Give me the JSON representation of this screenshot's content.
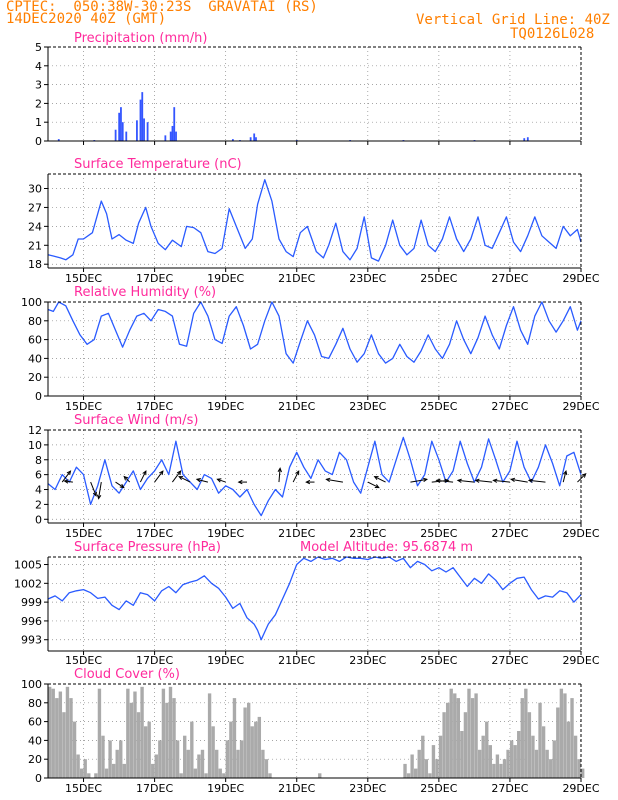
{
  "header": {
    "line1_left": "CPTEC:  050:38W-30:23S  GRAVATAI (RS)",
    "line2_left": "14DEC2020 40Z (GMT)",
    "line2_right": "Vertical Grid Line: 40Z",
    "line3_right": "TQ0126L028"
  },
  "colors": {
    "line": "#2a5bff",
    "bar": "#3355ff",
    "cloud": "#aaaaaa",
    "title": "#ff2a9c",
    "orange": "#ff7f00"
  },
  "x_axis": {
    "start_day": 14.0,
    "end_day": 29.0,
    "ticks": [
      15,
      17,
      19,
      21,
      23,
      25,
      27,
      29
    ],
    "tick_labels": [
      "15DEC",
      "17DEC",
      "19DEC",
      "21DEC",
      "23DEC",
      "25DEC",
      "27DEC",
      "29DEC"
    ]
  },
  "chart_data": [
    {
      "id": "precip",
      "type": "bar",
      "title": "Precipitation (mm/h)",
      "ylim": [
        0,
        5
      ],
      "yticks": [
        0,
        1,
        2,
        3,
        4,
        5
      ],
      "x": [
        14.3,
        15.3,
        15.9,
        16.0,
        16.05,
        16.1,
        16.2,
        16.5,
        16.6,
        16.65,
        16.7,
        16.8,
        17.3,
        17.45,
        17.5,
        17.55,
        17.6,
        19.2,
        19.4,
        19.7,
        19.8,
        19.85,
        21.0,
        22.5,
        24.0,
        26.0,
        27.4,
        27.5
      ],
      "values": [
        0.1,
        0.05,
        0.6,
        1.5,
        1.8,
        1.0,
        0.5,
        1.1,
        2.2,
        2.6,
        1.2,
        1.0,
        0.3,
        0.5,
        0.8,
        1.8,
        0.5,
        0.1,
        0.05,
        0.2,
        0.4,
        0.2,
        0.05,
        0.05,
        0.05,
        0.05,
        0.15,
        0.2
      ]
    },
    {
      "id": "temp",
      "type": "line",
      "title": "Surface Temperature (nC)",
      "ylim": [
        17.4,
        32.3
      ],
      "yticks": [
        18,
        21,
        24,
        27,
        30
      ],
      "x": [
        14.0,
        14.15,
        14.35,
        14.5,
        14.7,
        14.85,
        15.0,
        15.25,
        15.5,
        15.65,
        15.8,
        16.0,
        16.2,
        16.4,
        16.55,
        16.75,
        16.9,
        17.1,
        17.3,
        17.5,
        17.75,
        17.9,
        18.1,
        18.3,
        18.5,
        18.7,
        18.9,
        19.1,
        19.3,
        19.55,
        19.75,
        19.9,
        20.1,
        20.3,
        20.5,
        20.7,
        20.9,
        21.1,
        21.3,
        21.55,
        21.75,
        21.9,
        22.1,
        22.3,
        22.5,
        22.7,
        22.9,
        23.1,
        23.3,
        23.5,
        23.7,
        23.9,
        24.1,
        24.3,
        24.5,
        24.7,
        24.9,
        25.1,
        25.3,
        25.5,
        25.7,
        25.9,
        26.1,
        26.3,
        26.5,
        26.7,
        26.9,
        27.1,
        27.3,
        27.5,
        27.7,
        27.9,
        28.1,
        28.3,
        28.5,
        28.7,
        28.9,
        29.0
      ],
      "values": [
        19.5,
        19.3,
        19.0,
        18.7,
        19.5,
        22.0,
        22.0,
        23.0,
        28.0,
        26.0,
        22.0,
        22.7,
        21.8,
        21.3,
        24.5,
        27.0,
        24.0,
        21.3,
        20.3,
        21.8,
        20.8,
        24.0,
        23.8,
        23.0,
        20.0,
        19.7,
        20.5,
        26.8,
        24.0,
        20.5,
        22.0,
        27.5,
        31.4,
        28.0,
        22.0,
        20.0,
        19.2,
        23.0,
        24.0,
        20.0,
        19.0,
        21.0,
        24.5,
        20.0,
        18.7,
        20.5,
        25.5,
        19.0,
        18.5,
        21.0,
        25.0,
        21.0,
        19.5,
        20.5,
        25.0,
        21.0,
        20.0,
        22.0,
        25.5,
        22.0,
        20.0,
        22.0,
        25.5,
        21.0,
        20.5,
        23.0,
        25.5,
        21.5,
        20.0,
        22.5,
        25.5,
        22.5,
        21.5,
        20.5,
        24.0,
        22.5,
        23.5,
        21.5
      ]
    },
    {
      "id": "rh",
      "type": "line",
      "title": "Relative Humidity (%)",
      "ylim": [
        0,
        100
      ],
      "yticks": [
        0,
        20,
        40,
        60,
        80,
        100
      ],
      "x": [
        14.0,
        14.15,
        14.3,
        14.5,
        14.7,
        14.9,
        15.1,
        15.3,
        15.5,
        15.7,
        15.9,
        16.1,
        16.3,
        16.5,
        16.7,
        16.9,
        17.1,
        17.3,
        17.5,
        17.7,
        17.9,
        18.1,
        18.3,
        18.5,
        18.7,
        18.9,
        19.1,
        19.3,
        19.5,
        19.7,
        19.9,
        20.1,
        20.3,
        20.5,
        20.7,
        20.9,
        21.1,
        21.3,
        21.5,
        21.7,
        21.9,
        22.1,
        22.3,
        22.5,
        22.7,
        22.9,
        23.1,
        23.3,
        23.5,
        23.7,
        23.9,
        24.1,
        24.3,
        24.5,
        24.7,
        24.9,
        25.1,
        25.3,
        25.5,
        25.7,
        25.9,
        26.1,
        26.3,
        26.5,
        26.7,
        26.9,
        27.1,
        27.3,
        27.5,
        27.7,
        27.9,
        28.1,
        28.3,
        28.5,
        28.7,
        28.9,
        29.0
      ],
      "values": [
        92,
        90,
        100,
        96,
        80,
        65,
        55,
        60,
        85,
        88,
        70,
        52,
        70,
        85,
        88,
        80,
        92,
        90,
        85,
        55,
        53,
        88,
        100,
        85,
        60,
        56,
        85,
        95,
        75,
        50,
        55,
        80,
        100,
        85,
        45,
        35,
        58,
        80,
        65,
        42,
        40,
        55,
        72,
        50,
        36,
        45,
        65,
        45,
        35,
        40,
        55,
        42,
        36,
        48,
        65,
        50,
        40,
        55,
        80,
        60,
        45,
        62,
        85,
        65,
        50,
        75,
        95,
        70,
        55,
        85,
        100,
        80,
        68,
        80,
        95,
        70,
        80
      ]
    },
    {
      "id": "wind",
      "type": "line",
      "title": "Surface Wind (m/s)",
      "ylim": [
        -0.5,
        12
      ],
      "yticks": [
        0,
        2,
        4,
        6,
        8,
        10,
        12
      ],
      "x": [
        14.0,
        14.2,
        14.4,
        14.6,
        14.8,
        15.0,
        15.2,
        15.4,
        15.6,
        15.8,
        16.0,
        16.2,
        16.4,
        16.6,
        16.8,
        17.0,
        17.2,
        17.4,
        17.6,
        17.8,
        18.0,
        18.2,
        18.4,
        18.6,
        18.8,
        19.0,
        19.2,
        19.4,
        19.6,
        19.8,
        20.0,
        20.2,
        20.4,
        20.6,
        20.8,
        21.0,
        21.2,
        21.4,
        21.6,
        21.8,
        22.0,
        22.2,
        22.4,
        22.6,
        22.8,
        23.0,
        23.2,
        23.4,
        23.6,
        23.8,
        24.0,
        24.2,
        24.4,
        24.6,
        24.8,
        25.0,
        25.2,
        25.4,
        25.6,
        25.8,
        26.0,
        26.2,
        26.4,
        26.6,
        26.8,
        27.0,
        27.2,
        27.4,
        27.6,
        27.8,
        28.0,
        28.2,
        28.4,
        28.6,
        28.8,
        29.0
      ],
      "values": [
        4.8,
        4.0,
        6.0,
        5.0,
        7.0,
        6.0,
        2.0,
        4.5,
        8.0,
        4.5,
        3.5,
        5.0,
        6.5,
        4.0,
        5.5,
        6.5,
        8.0,
        6.0,
        10.5,
        6.0,
        5.0,
        4.0,
        6.0,
        5.5,
        3.5,
        4.5,
        4.0,
        3.0,
        4.0,
        2.0,
        0.5,
        2.5,
        4.0,
        3.0,
        7.0,
        9.0,
        7.0,
        5.5,
        8.0,
        6.5,
        6.0,
        9.0,
        8.0,
        5.0,
        3.5,
        7.0,
        10.5,
        6.0,
        5.0,
        8.0,
        11.0,
        8.0,
        4.5,
        6.0,
        10.5,
        8.0,
        5.0,
        6.5,
        10.5,
        7.5,
        5.0,
        7.0,
        10.8,
        8.0,
        5.0,
        6.5,
        10.5,
        7.0,
        5.0,
        7.0,
        10.0,
        7.5,
        4.5,
        8.5,
        9.0,
        6.0
      ],
      "barb_x": [
        14.4,
        14.7,
        15.2,
        15.5,
        15.9,
        16.3,
        16.6,
        17.0,
        17.5,
        18.0,
        18.5,
        19.0,
        19.6,
        20.5,
        20.9,
        21.5,
        22.3,
        23.0,
        23.5,
        24.2,
        24.8,
        25.4,
        26.0,
        26.5,
        27.0,
        27.5,
        28.0,
        28.5,
        28.9
      ],
      "barb_u": [
        1.5,
        -1.5,
        1.0,
        -0.5,
        1.5,
        -1.0,
        1.0,
        1.5,
        1.5,
        -2.0,
        -2.0,
        -1.5,
        -1.5,
        0.2,
        1.0,
        -1.5,
        -3.0,
        2.0,
        -2.0,
        3.0,
        3.0,
        -3.0,
        -3.0,
        -3.0,
        -3.0,
        -3.0,
        -3.0,
        0.5,
        1.5
      ],
      "barb_v": [
        2.0,
        0.2,
        -2.5,
        -3.0,
        -1.0,
        1.0,
        2.0,
        2.0,
        2.0,
        1.0,
        0.5,
        0.5,
        0.0,
        2.5,
        2.0,
        0.0,
        0.5,
        -1.0,
        1.0,
        0.5,
        0.3,
        0.3,
        0.3,
        0.3,
        0.3,
        0.5,
        0.3,
        2.0,
        1.5
      ]
    },
    {
      "id": "pressure",
      "type": "line",
      "title": "Surface Pressure (hPa)",
      "annotation": "Model Altitude: 95.6874 m",
      "ylim": [
        991.2,
        1006.2
      ],
      "yticks": [
        993,
        996,
        999,
        1002,
        1005
      ],
      "x": [
        14.0,
        14.2,
        14.4,
        14.6,
        14.8,
        15.0,
        15.2,
        15.4,
        15.6,
        15.8,
        16.0,
        16.2,
        16.4,
        16.6,
        16.8,
        17.0,
        17.2,
        17.4,
        17.6,
        17.8,
        18.0,
        18.2,
        18.4,
        18.6,
        18.8,
        19.0,
        19.2,
        19.4,
        19.6,
        19.8,
        19.9,
        20.0,
        20.2,
        20.4,
        20.6,
        20.8,
        21.0,
        21.2,
        21.4,
        21.6,
        21.8,
        22.0,
        22.2,
        22.4,
        22.6,
        22.8,
        23.0,
        23.2,
        23.4,
        23.6,
        23.8,
        24.0,
        24.2,
        24.4,
        24.6,
        24.8,
        25.0,
        25.2,
        25.4,
        25.6,
        25.8,
        26.0,
        26.2,
        26.4,
        26.6,
        26.8,
        27.0,
        27.2,
        27.4,
        27.6,
        27.8,
        28.0,
        28.2,
        28.4,
        28.6,
        28.8,
        29.0
      ],
      "values": [
        999.5,
        1000.0,
        999.2,
        1000.5,
        1000.8,
        1001.0,
        1000.5,
        999.6,
        999.8,
        998.5,
        997.8,
        999.2,
        998.5,
        1000.5,
        1000.2,
        999.2,
        1000.8,
        1001.5,
        1000.5,
        1001.8,
        1002.2,
        1002.5,
        1003.2,
        1002.0,
        1001.2,
        999.8,
        998.0,
        998.8,
        996.5,
        995.5,
        994.5,
        993.0,
        995.5,
        997.0,
        999.5,
        1002.0,
        1005.0,
        1006.0,
        1005.5,
        1006.2,
        1005.8,
        1006.0,
        1005.5,
        1006.2,
        1006.0,
        1006.0,
        1005.8,
        1006.2,
        1006.0,
        1006.2,
        1005.5,
        1006.0,
        1004.5,
        1005.5,
        1005.0,
        1004.0,
        1004.5,
        1003.8,
        1004.5,
        1003.0,
        1001.5,
        1002.8,
        1002.0,
        1003.5,
        1002.5,
        1001.0,
        1002.0,
        1002.8,
        1003.0,
        1001.0,
        999.5,
        1000.0,
        999.8,
        1000.8,
        1000.5,
        999.0,
        1000.2
      ]
    },
    {
      "id": "cloud",
      "type": "area",
      "title": "Cloud Cover (%)",
      "ylim": [
        0,
        100
      ],
      "yticks": [
        0,
        20,
        40,
        60,
        80,
        100
      ],
      "x": [
        14.0,
        14.1,
        14.2,
        14.3,
        14.4,
        14.5,
        14.6,
        14.7,
        14.8,
        14.9,
        15.0,
        15.1,
        15.2,
        15.3,
        15.4,
        15.5,
        15.6,
        15.7,
        15.8,
        15.9,
        16.0,
        16.1,
        16.2,
        16.3,
        16.4,
        16.5,
        16.6,
        16.7,
        16.8,
        16.9,
        17.0,
        17.1,
        17.2,
        17.3,
        17.4,
        17.5,
        17.6,
        17.7,
        17.8,
        17.9,
        18.0,
        18.1,
        18.2,
        18.3,
        18.4,
        18.5,
        18.6,
        18.7,
        18.8,
        18.9,
        19.0,
        19.1,
        19.2,
        19.3,
        19.4,
        19.5,
        19.6,
        19.7,
        19.8,
        19.9,
        20.0,
        20.1,
        20.2,
        20.3,
        20.4,
        20.5,
        20.6,
        20.7,
        20.8,
        20.9,
        21.0,
        21.2,
        21.4,
        21.6,
        21.8,
        22.0,
        22.2,
        22.4,
        22.6,
        22.8,
        23.0,
        23.2,
        23.4,
        23.6,
        23.8,
        24.0,
        24.1,
        24.2,
        24.3,
        24.4,
        24.5,
        24.6,
        24.7,
        24.8,
        24.9,
        25.0,
        25.1,
        25.2,
        25.3,
        25.4,
        25.5,
        25.6,
        25.7,
        25.8,
        25.9,
        26.0,
        26.1,
        26.2,
        26.3,
        26.4,
        26.5,
        26.6,
        26.7,
        26.8,
        26.9,
        27.0,
        27.1,
        27.2,
        27.3,
        27.4,
        27.5,
        27.6,
        27.7,
        27.8,
        27.9,
        28.0,
        28.1,
        28.2,
        28.3,
        28.4,
        28.5,
        28.6,
        28.7,
        28.8,
        28.9,
        29.0
      ],
      "values": [
        97,
        95,
        85,
        92,
        70,
        97,
        85,
        60,
        25,
        10,
        20,
        5,
        0,
        5,
        95,
        45,
        10,
        40,
        15,
        30,
        40,
        15,
        95,
        80,
        92,
        70,
        97,
        55,
        60,
        15,
        25,
        40,
        95,
        80,
        97,
        85,
        40,
        5,
        45,
        30,
        60,
        10,
        25,
        30,
        5,
        90,
        55,
        30,
        10,
        5,
        40,
        60,
        85,
        30,
        40,
        75,
        80,
        55,
        60,
        65,
        30,
        20,
        5,
        0,
        0,
        0,
        0,
        0,
        0,
        0,
        0,
        0,
        0,
        5,
        0,
        0,
        0,
        0,
        0,
        0,
        0,
        0,
        0,
        0,
        0,
        15,
        5,
        25,
        10,
        30,
        45,
        20,
        5,
        35,
        20,
        45,
        70,
        80,
        95,
        90,
        85,
        50,
        70,
        95,
        85,
        90,
        30,
        45,
        60,
        35,
        15,
        25,
        15,
        20,
        30,
        40,
        35,
        50,
        85,
        95,
        70,
        45,
        30,
        80,
        55,
        30,
        20,
        40,
        75,
        95,
        90,
        60,
        85,
        45,
        20,
        10
      ]
    }
  ]
}
